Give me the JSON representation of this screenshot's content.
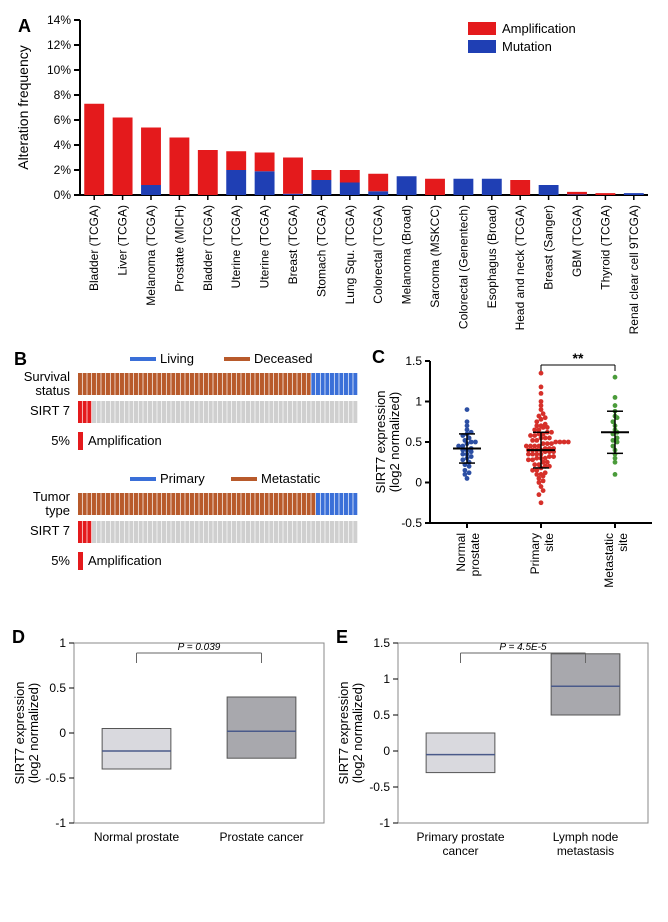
{
  "colors": {
    "amplification": "#e41a1c",
    "mutation": "#1f3fb4",
    "axis": "#000000",
    "living": "#3a6fd8",
    "deceased": "#b85a2b",
    "primary": "#3a6fd8",
    "metastatic": "#b85a2b",
    "sirt7_amp": "#e41a1c",
    "sirt7_neutral": "#cfcfcf",
    "box_light": "#d9d9de",
    "box_dark": "#a8a8ad",
    "box_stroke": "#555",
    "scatter_blue": "#2c4fa3",
    "scatter_red": "#d6302a",
    "scatter_green": "#4a9b3a"
  },
  "panelA": {
    "label": "A",
    "y_title": "Alteration frequency",
    "ylim": [
      0,
      14
    ],
    "ytick_step": 2,
    "ytick_suffix": "%",
    "legend": [
      {
        "label": "Amplification",
        "color_key": "amplification"
      },
      {
        "label": "Mutation",
        "color_key": "mutation"
      }
    ],
    "categories": [
      {
        "name": "Bladder (TCGA)",
        "amp": 7.3,
        "mut": 0.0
      },
      {
        "name": "Liver (TCGA)",
        "amp": 6.2,
        "mut": 0.0
      },
      {
        "name": "Melanoma (TCGA)",
        "amp": 4.6,
        "mut": 0.8
      },
      {
        "name": "Prostate (MICH)",
        "amp": 4.6,
        "mut": 0.0
      },
      {
        "name": "Bladder (TCGA)",
        "amp": 3.6,
        "mut": 0.0
      },
      {
        "name": "Uterine (TCGA)",
        "amp": 1.5,
        "mut": 2.0
      },
      {
        "name": "Uterine (TCGA)",
        "amp": 1.5,
        "mut": 1.9
      },
      {
        "name": "Breast (TCGA)",
        "amp": 2.9,
        "mut": 0.1
      },
      {
        "name": "Stomach (TCGA)",
        "amp": 0.8,
        "mut": 1.2
      },
      {
        "name": "Lung Squ. (TCGA)",
        "amp": 1.0,
        "mut": 1.0
      },
      {
        "name": "Colorectal (TCGA)",
        "amp": 1.4,
        "mut": 0.3
      },
      {
        "name": "Melanoma (Broad)",
        "amp": 0.0,
        "mut": 1.5
      },
      {
        "name": "Sarcoma (MSKCC)",
        "amp": 1.3,
        "mut": 0.0
      },
      {
        "name": "Colorectal (Genentech)",
        "amp": 0.0,
        "mut": 1.3
      },
      {
        "name": "Esophagus (Broad)",
        "amp": 0.0,
        "mut": 1.3
      },
      {
        "name": "Head and neck (TCGA)",
        "amp": 1.2,
        "mut": 0.0
      },
      {
        "name": "Breast (Sanger)",
        "amp": 0.0,
        "mut": 0.8
      },
      {
        "name": "GBM (TCGA)",
        "amp": 0.2,
        "mut": 0.05
      },
      {
        "name": "Thyroid (TCGA)",
        "amp": 0.15,
        "mut": 0.0
      },
      {
        "name": "Renal clear cell 9TCGA)",
        "amp": 0.0,
        "mut": 0.15
      }
    ]
  },
  "panelB": {
    "label": "B",
    "tracks": [
      {
        "title_top": "Survival status",
        "title_bottom": "SIRT 7",
        "legend": [
          {
            "label": "Living",
            "color_key": "living"
          },
          {
            "label": "Deceased",
            "color_key": "deceased"
          }
        ],
        "amp_label": "5%",
        "amp_word": "Amplification",
        "marker_color_key": "sirt7_amp",
        "n": 60,
        "top_deceased_count": 50,
        "sirt7_amp_count": 3
      },
      {
        "title_top": "Tumor type",
        "title_bottom": "SIRT 7",
        "legend": [
          {
            "label": "Primary",
            "color_key": "primary"
          },
          {
            "label": "Metastatic",
            "color_key": "metastatic"
          }
        ],
        "amp_label": "5%",
        "amp_word": "Amplification",
        "marker_color_key": "sirt7_amp",
        "n": 60,
        "top_deceased_count": 51,
        "sirt7_amp_count": 3
      }
    ]
  },
  "panelC": {
    "label": "C",
    "y_title": "SIRT7 expression\n(log2 normalized)",
    "ylim": [
      -0.5,
      1.5
    ],
    "yticks": [
      -0.5,
      0,
      0.5,
      1.0,
      1.5
    ],
    "sig_label": "**",
    "categories": [
      "Normal prostate",
      "Primary site",
      "Metastatic site"
    ],
    "groups": [
      {
        "color_key": "scatter_blue",
        "mean": 0.42,
        "err": 0.18,
        "points": [
          0.05,
          0.1,
          0.12,
          0.15,
          0.2,
          0.22,
          0.25,
          0.28,
          0.3,
          0.32,
          0.35,
          0.35,
          0.38,
          0.4,
          0.4,
          0.42,
          0.45,
          0.45,
          0.48,
          0.5,
          0.5,
          0.52,
          0.55,
          0.58,
          0.6,
          0.62,
          0.65,
          0.7,
          0.75,
          0.9
        ]
      },
      {
        "color_key": "scatter_red",
        "mean": 0.4,
        "err": 0.22,
        "points": [
          -0.25,
          -0.15,
          -0.1,
          -0.05,
          0,
          0.02,
          0.05,
          0.08,
          0.1,
          0.1,
          0.12,
          0.15,
          0.15,
          0.18,
          0.2,
          0.2,
          0.22,
          0.22,
          0.25,
          0.25,
          0.28,
          0.28,
          0.3,
          0.3,
          0.3,
          0.32,
          0.32,
          0.35,
          0.35,
          0.35,
          0.35,
          0.38,
          0.38,
          0.38,
          0.4,
          0.4,
          0.4,
          0.4,
          0.42,
          0.42,
          0.42,
          0.45,
          0.45,
          0.45,
          0.45,
          0.48,
          0.48,
          0.48,
          0.5,
          0.5,
          0.5,
          0.5,
          0.52,
          0.52,
          0.55,
          0.55,
          0.55,
          0.58,
          0.58,
          0.6,
          0.6,
          0.62,
          0.62,
          0.65,
          0.65,
          0.68,
          0.68,
          0.7,
          0.7,
          0.72,
          0.75,
          0.78,
          0.8,
          0.82,
          0.85,
          0.9,
          0.95,
          1.0,
          1.1,
          1.18,
          1.35
        ]
      },
      {
        "color_key": "scatter_green",
        "mean": 0.62,
        "err": 0.26,
        "points": [
          0.1,
          0.25,
          0.3,
          0.35,
          0.4,
          0.45,
          0.5,
          0.52,
          0.55,
          0.6,
          0.62,
          0.65,
          0.7,
          0.75,
          0.8,
          0.82,
          0.88,
          0.95,
          1.05,
          1.3
        ]
      }
    ]
  },
  "panelD": {
    "label": "D",
    "y_title": "SIRT7 expression\n(log2 normalized)",
    "ylim": [
      -1,
      1
    ],
    "yticks": [
      -1,
      -0.5,
      0,
      0.5,
      1.0
    ],
    "p_label": "P = 0.039",
    "categories": [
      "Normal prostate",
      "Prostate cancer"
    ],
    "boxes": [
      {
        "fill_key": "box_light",
        "q1": -0.4,
        "median": -0.2,
        "q3": 0.05
      },
      {
        "fill_key": "box_dark",
        "q1": -0.28,
        "median": 0.02,
        "q3": 0.4
      }
    ]
  },
  "panelE": {
    "label": "E",
    "y_title": "SIRT7 expression\n(log2 normalized)",
    "ylim": [
      -1,
      1.5
    ],
    "yticks": [
      -1,
      -0.5,
      0,
      0.5,
      1.0,
      1.5
    ],
    "p_label": "P = 4.5E-5",
    "categories": [
      "Primary prostate cancer",
      "Lymph node metastasis"
    ],
    "boxes": [
      {
        "fill_key": "box_light",
        "q1": -0.3,
        "median": -0.05,
        "q3": 0.25
      },
      {
        "fill_key": "box_dark",
        "q1": 0.5,
        "median": 0.9,
        "q3": 1.35
      }
    ]
  }
}
